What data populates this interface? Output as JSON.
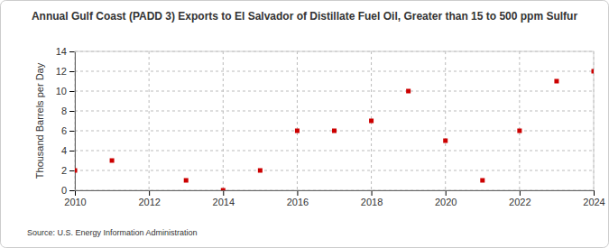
{
  "chart_data": {
    "type": "scatter",
    "title": "Annual Gulf Coast (PADD 3) Exports to El Salvador of Distillate Fuel Oil, Greater than 15 to 500 ppm Sulfur",
    "y_label": "Thousand Barrels per Day",
    "source": "Source: U.S. Energy Information Administration",
    "x": [
      2010,
      2011,
      2013,
      2014,
      2015,
      2016,
      2017,
      2018,
      2019,
      2020,
      2021,
      2022,
      2023,
      2024
    ],
    "values": [
      2,
      3,
      1,
      0,
      2,
      6,
      6,
      7,
      10,
      5,
      1,
      6,
      11,
      12
    ],
    "color": "#cc0000",
    "marker": "square",
    "xlim": [
      2010,
      2024
    ],
    "xticks": [
      2010,
      2012,
      2014,
      2016,
      2018,
      2020,
      2022,
      2024
    ],
    "ylim": [
      0,
      14
    ],
    "yticks": [
      0,
      2,
      4,
      6,
      8,
      10,
      12,
      14
    ],
    "grid": true
  }
}
